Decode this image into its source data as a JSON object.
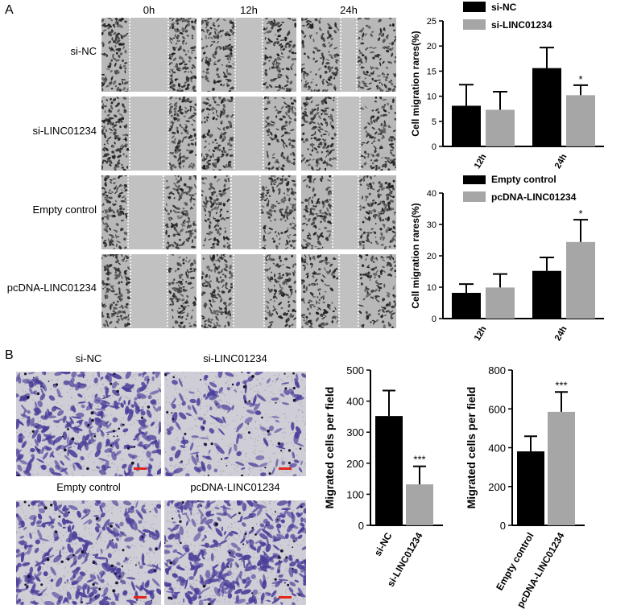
{
  "panels": {
    "a": "A",
    "b": "B"
  },
  "scratch": {
    "timepoints": [
      "0h",
      "12h",
      "24h"
    ],
    "rows": [
      "si-NC",
      "si-LINC01234",
      "Empty control",
      "pcDNA-LINC01234"
    ]
  },
  "transwell": {
    "labels": [
      "si-NC",
      "si-LINC01234",
      "Empty control",
      "pcDNA-LINC01234"
    ],
    "stain_color": "#4a3f9a",
    "scale_bar_color": "#e0261b"
  },
  "colors": {
    "black": "#000000",
    "gray": "#a6a6a6"
  },
  "chart_data": [
    {
      "type": "bar",
      "ylabel": "Cell migration rares(%)",
      "categories": [
        "12h",
        "24h"
      ],
      "ylim": [
        0,
        25
      ],
      "yticks": [
        0,
        5,
        10,
        15,
        20,
        25
      ],
      "legend": "top-left",
      "series": [
        {
          "name": "si-NC",
          "values": [
            8.1,
            15.6
          ],
          "errors": [
            4.2,
            4.1
          ]
        },
        {
          "name": "si-LINC01234",
          "values": [
            7.3,
            10.2
          ],
          "errors": [
            3.6,
            2.0
          ]
        }
      ],
      "annotations": [
        {
          "category": "24h",
          "series": 1,
          "text": "*"
        }
      ]
    },
    {
      "type": "bar",
      "ylabel": "Cell migration rares(%)",
      "categories": [
        "12h",
        "24h"
      ],
      "ylim": [
        0,
        40
      ],
      "yticks": [
        0,
        10,
        20,
        30,
        40
      ],
      "legend": "top-left",
      "series": [
        {
          "name": "Empty control",
          "values": [
            8.2,
            15.2
          ],
          "errors": [
            2.8,
            4.3
          ]
        },
        {
          "name": "pcDNA-LINC01234",
          "values": [
            9.9,
            24.4
          ],
          "errors": [
            4.3,
            7.1
          ]
        }
      ],
      "annotations": [
        {
          "category": "24h",
          "series": 1,
          "text": "*"
        }
      ]
    },
    {
      "type": "bar",
      "ylabel": "Migrated cells per field",
      "categories": [
        "si-NC",
        "si-LINC01234"
      ],
      "values": [
        352,
        132
      ],
      "errors": [
        82,
        58
      ],
      "ylim": [
        0,
        500
      ],
      "yticks": [
        0,
        100,
        200,
        300,
        400,
        500
      ],
      "annotations": [
        {
          "category": "si-LINC01234",
          "text": "***"
        }
      ]
    },
    {
      "type": "bar",
      "ylabel": "Migrated cells per field",
      "categories": [
        "Empty control",
        "pcDNA-LINC01234"
      ],
      "values": [
        381,
        585
      ],
      "errors": [
        78,
        102
      ],
      "ylim": [
        0,
        800
      ],
      "yticks": [
        0,
        200,
        400,
        600,
        800
      ],
      "annotations": [
        {
          "category": "pcDNA-LINC01234",
          "text": "***"
        }
      ]
    }
  ]
}
